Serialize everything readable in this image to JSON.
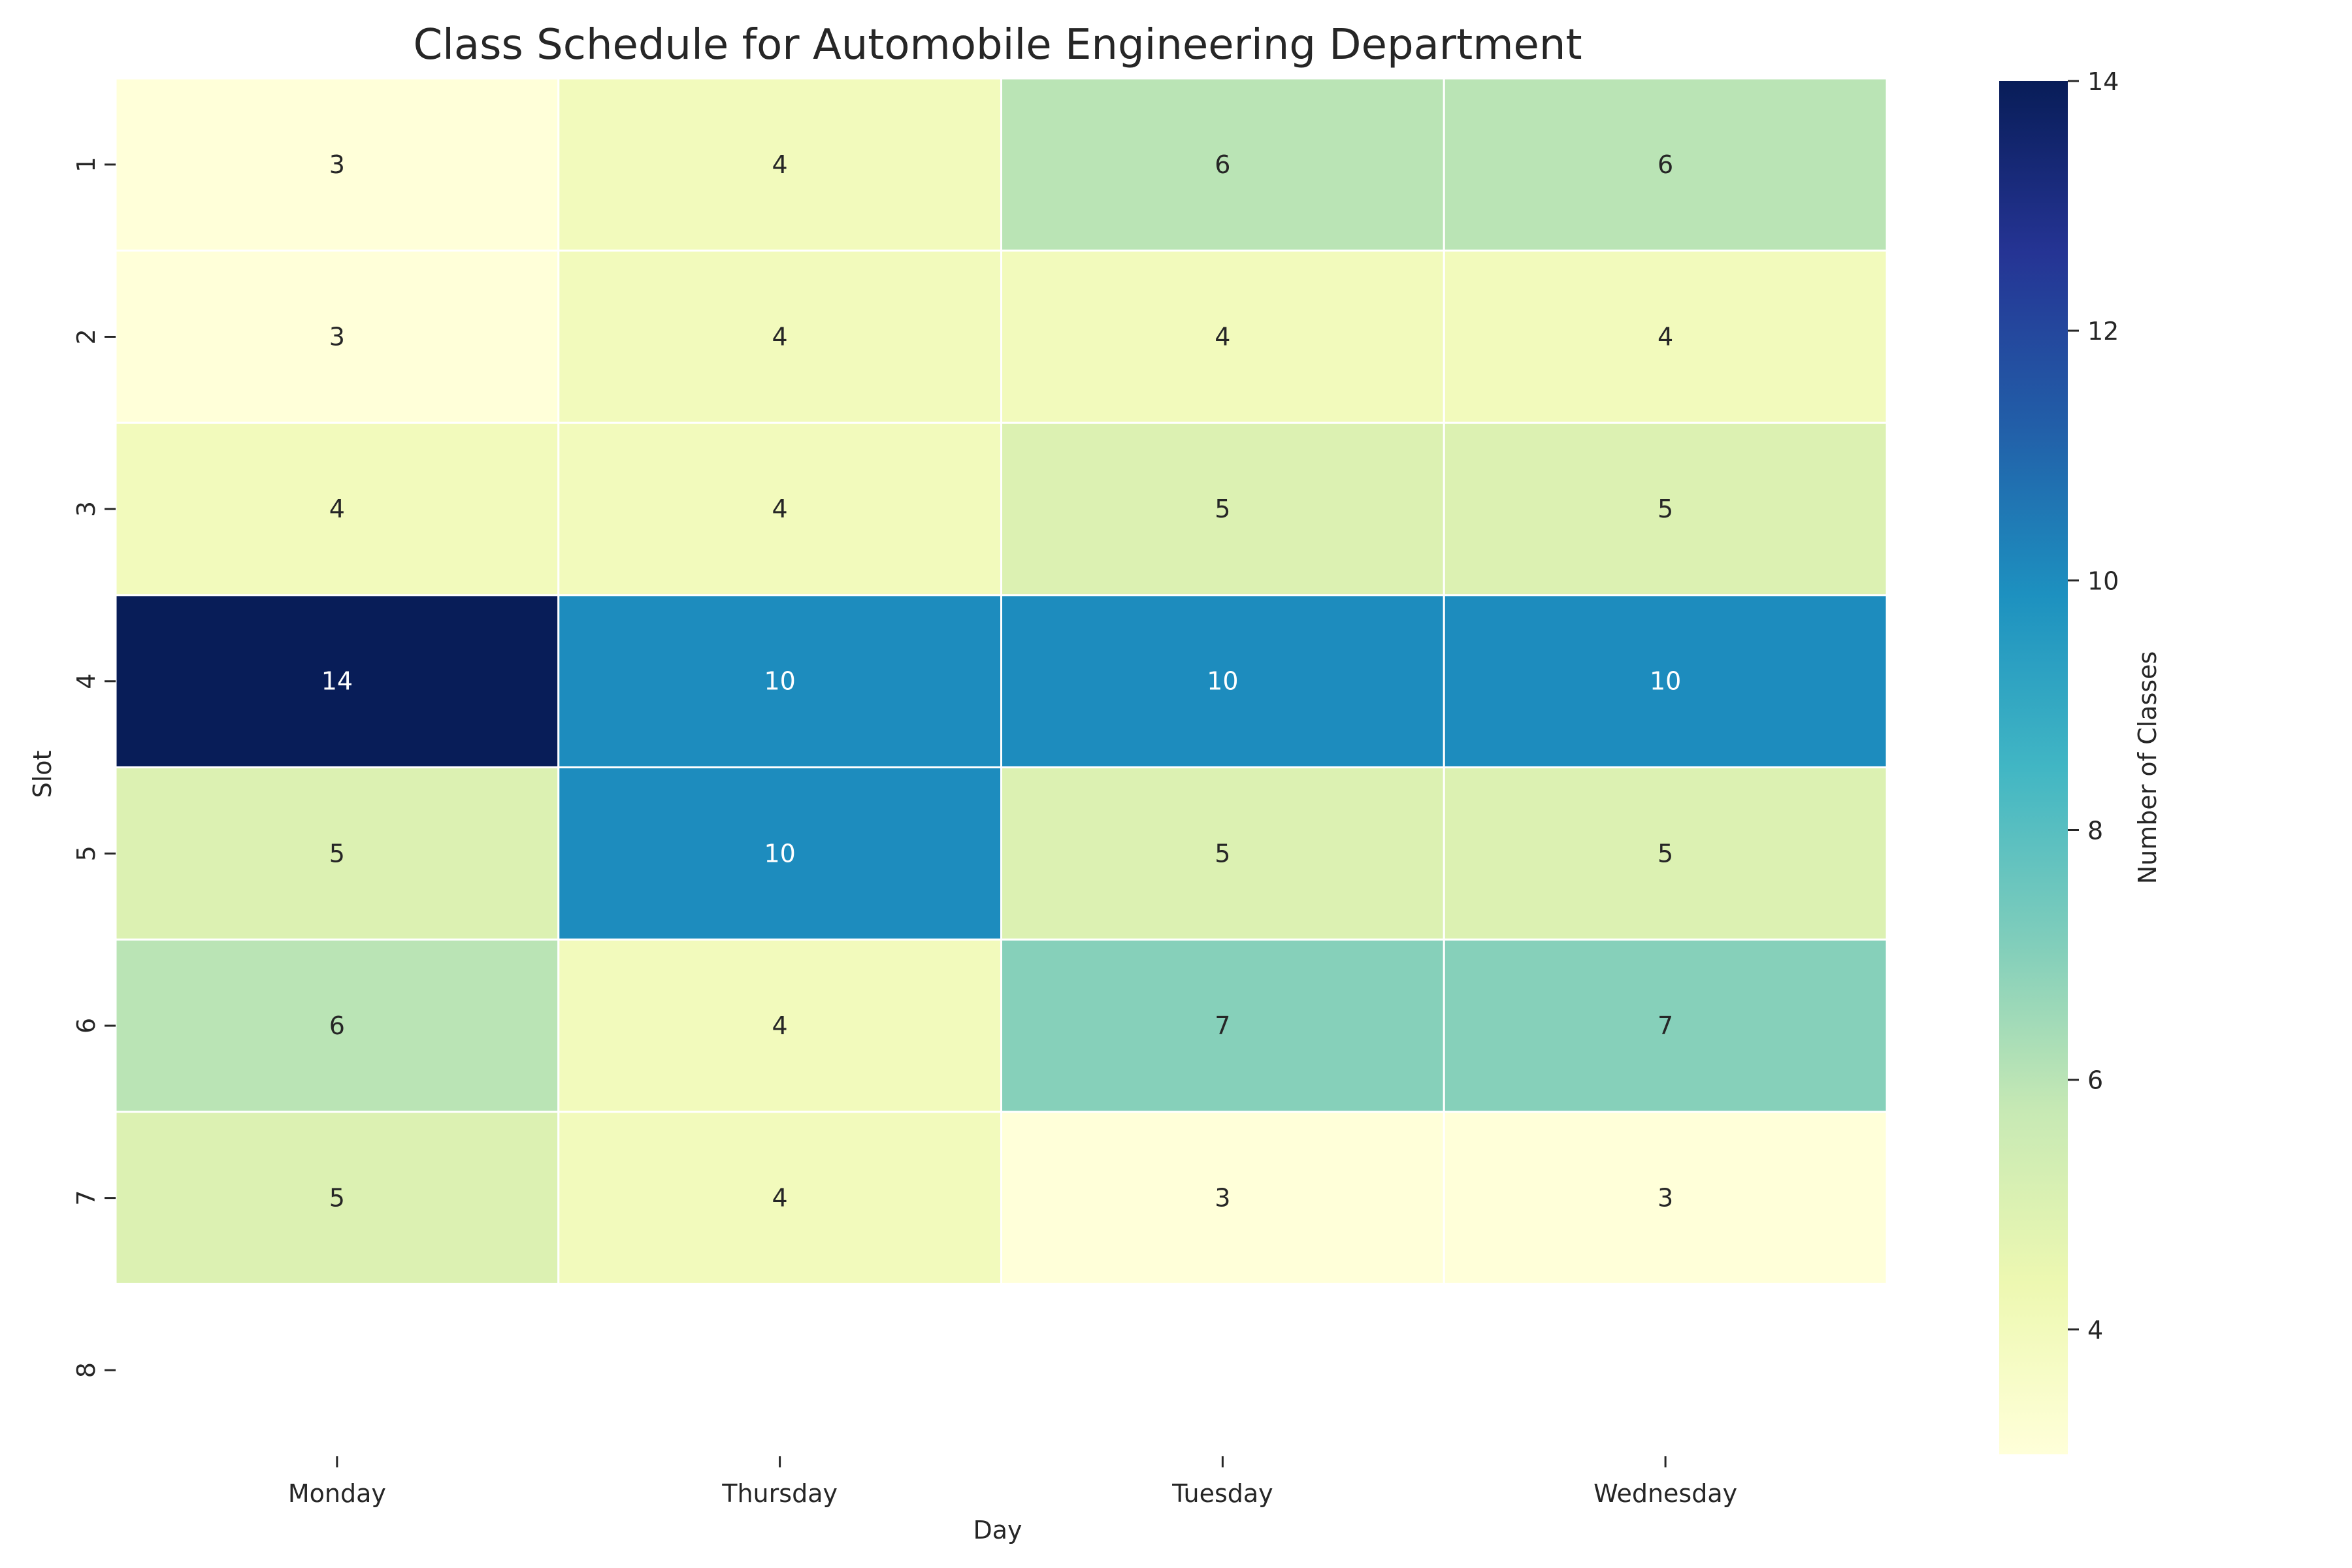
{
  "chart_data": {
    "type": "heatmap",
    "title": "Class Schedule for Automobile Engineering Department",
    "xlabel": "Day",
    "ylabel": "Slot",
    "x_categories": [
      "Monday",
      "Thursday",
      "Tuesday",
      "Wednesday"
    ],
    "y_categories": [
      "1",
      "2",
      "3",
      "4",
      "5",
      "6",
      "7",
      "8"
    ],
    "values": [
      [
        3,
        4,
        6,
        6
      ],
      [
        3,
        4,
        4,
        4
      ],
      [
        4,
        4,
        5,
        5
      ],
      [
        14,
        10,
        10,
        10
      ],
      [
        5,
        10,
        5,
        5
      ],
      [
        6,
        4,
        7,
        7
      ],
      [
        5,
        4,
        3,
        3
      ],
      [
        null,
        null,
        null,
        null
      ]
    ],
    "colorscale": "YlGnBu",
    "vmin": 3,
    "vmax": 14,
    "colorbar": {
      "label": "Number of Classes",
      "ticks": [
        4,
        6,
        8,
        10,
        12,
        14
      ]
    },
    "annotated": true
  }
}
